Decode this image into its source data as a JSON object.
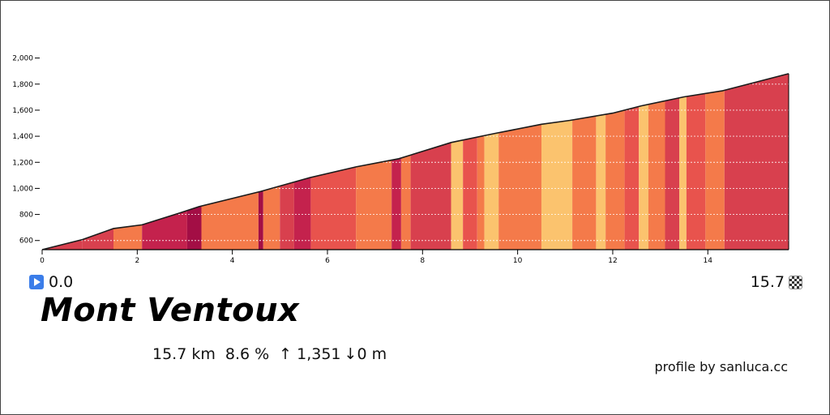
{
  "chart_data": {
    "type": "area",
    "title": "Mont Ventoux",
    "xlabel": "",
    "ylabel": "",
    "xlim": [
      0,
      15.7
    ],
    "ylim": [
      530,
      2000
    ],
    "grid": true,
    "x_ticks": [
      0,
      2,
      4,
      6,
      8,
      10,
      12,
      14
    ],
    "y_ticks": [
      600,
      800,
      1000,
      1200,
      1400,
      1600,
      1800,
      2000
    ],
    "y_tick_labels": [
      "600",
      "800",
      "1,000",
      "1,200",
      "1,400",
      "1,600",
      "1,800",
      "2,000"
    ],
    "elevation": {
      "x": [
        0,
        0.85,
        1.5,
        2.1,
        2.9,
        3.3,
        4.6,
        5.6,
        6.6,
        7.5,
        8.6,
        9.5,
        10.5,
        11.1,
        12.0,
        12.6,
        13.5,
        14.3,
        15.7
      ],
      "y": [
        530,
        608,
        692,
        720,
        812,
        860,
        977,
        1080,
        1165,
        1228,
        1352,
        1420,
        1492,
        1522,
        1577,
        1633,
        1702,
        1748,
        1880
      ]
    },
    "gradient_segments": [
      {
        "from": 0.0,
        "to": 0.85,
        "color": "#d8404e"
      },
      {
        "from": 0.85,
        "to": 1.5,
        "color": "#d8404e"
      },
      {
        "from": 1.5,
        "to": 2.1,
        "color": "#f47a4a"
      },
      {
        "from": 2.1,
        "to": 3.05,
        "color": "#c4224d"
      },
      {
        "from": 3.05,
        "to": 3.35,
        "color": "#a30e45"
      },
      {
        "from": 3.35,
        "to": 4.55,
        "color": "#f47a4a"
      },
      {
        "from": 4.55,
        "to": 4.65,
        "color": "#a30e45"
      },
      {
        "from": 4.65,
        "to": 5.0,
        "color": "#f47a4a"
      },
      {
        "from": 5.0,
        "to": 5.3,
        "color": "#d8404e"
      },
      {
        "from": 5.3,
        "to": 5.65,
        "color": "#c4224d"
      },
      {
        "from": 5.65,
        "to": 6.6,
        "color": "#e8534d"
      },
      {
        "from": 6.6,
        "to": 7.35,
        "color": "#f47a4a"
      },
      {
        "from": 7.35,
        "to": 7.55,
        "color": "#c4224d"
      },
      {
        "from": 7.55,
        "to": 7.75,
        "color": "#f47a4a"
      },
      {
        "from": 7.75,
        "to": 8.6,
        "color": "#d8404e"
      },
      {
        "from": 8.6,
        "to": 8.85,
        "color": "#fbc36e"
      },
      {
        "from": 8.85,
        "to": 9.15,
        "color": "#e8534d"
      },
      {
        "from": 9.15,
        "to": 9.3,
        "color": "#f47a4a"
      },
      {
        "from": 9.3,
        "to": 9.6,
        "color": "#fbc36e"
      },
      {
        "from": 9.6,
        "to": 10.5,
        "color": "#f47a4a"
      },
      {
        "from": 10.5,
        "to": 11.15,
        "color": "#fbc36e"
      },
      {
        "from": 11.15,
        "to": 11.65,
        "color": "#f47a4a"
      },
      {
        "from": 11.65,
        "to": 11.85,
        "color": "#fbc36e"
      },
      {
        "from": 11.85,
        "to": 12.25,
        "color": "#f47a4a"
      },
      {
        "from": 12.25,
        "to": 12.55,
        "color": "#e8534d"
      },
      {
        "from": 12.55,
        "to": 12.75,
        "color": "#fbc36e"
      },
      {
        "from": 12.75,
        "to": 13.1,
        "color": "#f47a4a"
      },
      {
        "from": 13.1,
        "to": 13.4,
        "color": "#d8404e"
      },
      {
        "from": 13.4,
        "to": 13.55,
        "color": "#fbc36e"
      },
      {
        "from": 13.55,
        "to": 13.95,
        "color": "#e8534d"
      },
      {
        "from": 13.95,
        "to": 14.35,
        "color": "#f47a4a"
      },
      {
        "from": 14.35,
        "to": 15.7,
        "color": "#d8404e"
      }
    ]
  },
  "start": {
    "km": "0.0",
    "icon": "play-icon"
  },
  "finish": {
    "km": "15.7",
    "icon": "checkered-flag-icon"
  },
  "climb": {
    "name": "Mont Ventoux",
    "distance": "15.7 km",
    "gradient": "8.6 %",
    "ascent": "↑ 1,351",
    "descent": "↓0 m"
  },
  "credit": "profile by sanluca.cc"
}
